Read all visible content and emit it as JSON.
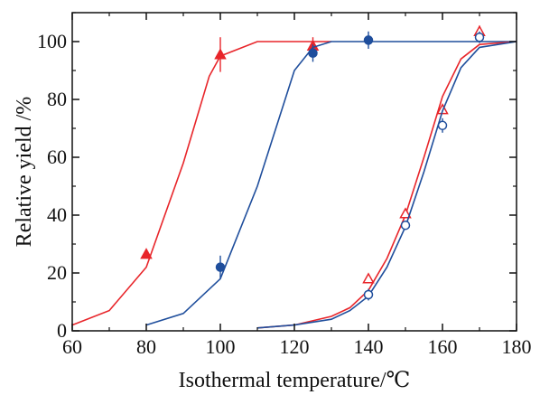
{
  "chart_data": {
    "type": "line",
    "xlabel": "Isothermal temperature/℃",
    "ylabel": "Relative yield /%",
    "xlim": [
      60,
      180
    ],
    "ylim": [
      0,
      110
    ],
    "xticks": [
      60,
      80,
      100,
      120,
      140,
      160,
      180
    ],
    "yticks": [
      0,
      20,
      40,
      60,
      80,
      100
    ],
    "grid": false,
    "series": [
      {
        "color": "#e8252a",
        "marker": "triangle-filled",
        "curve": {
          "x": [
            60,
            70,
            80,
            90,
            97,
            100,
            110,
            120,
            130
          ],
          "y": [
            2,
            7,
            22,
            58,
            88,
            95,
            100,
            100,
            100
          ]
        },
        "points": [
          {
            "x": 80,
            "y": 26.5,
            "err": 0
          },
          {
            "x": 100,
            "y": 95.5,
            "err": 6
          },
          {
            "x": 125,
            "y": 98.5,
            "err": 3
          }
        ]
      },
      {
        "color": "#1f4e9c",
        "marker": "circle-filled",
        "curve": {
          "x": [
            80,
            90,
            100,
            110,
            120,
            125,
            130,
            140,
            150,
            160,
            170,
            180
          ],
          "y": [
            2,
            6,
            18,
            50,
            90,
            98,
            100,
            100,
            100,
            100,
            100,
            100
          ]
        },
        "points": [
          {
            "x": 100,
            "y": 22,
            "err": 4
          },
          {
            "x": 125,
            "y": 96,
            "err": 3
          },
          {
            "x": 140,
            "y": 100.5,
            "err": 3
          }
        ]
      },
      {
        "color": "#e8252a",
        "marker": "triangle-open",
        "curve": {
          "x": [
            110,
            120,
            130,
            135,
            140,
            145,
            150,
            155,
            160,
            165,
            170,
            180
          ],
          "y": [
            1,
            2,
            5,
            8,
            14,
            25,
            40,
            60,
            81,
            94,
            99,
            100
          ]
        },
        "points": [
          {
            "x": 140,
            "y": 18,
            "err": 1.5
          },
          {
            "x": 150,
            "y": 40.5,
            "err": 1.5
          },
          {
            "x": 160,
            "y": 76.5,
            "err": 1.5
          },
          {
            "x": 170,
            "y": 103.5,
            "err": 2
          }
        ]
      },
      {
        "color": "#1f4e9c",
        "marker": "circle-open",
        "curve": {
          "x": [
            110,
            120,
            130,
            135,
            140,
            145,
            150,
            155,
            160,
            165,
            170,
            180
          ],
          "y": [
            1,
            2,
            4,
            7,
            12,
            22,
            36,
            55,
            76,
            91,
            98,
            100
          ]
        },
        "points": [
          {
            "x": 140,
            "y": 12.5,
            "err": 2
          },
          {
            "x": 150,
            "y": 36.5,
            "err": 1.5
          },
          {
            "x": 160,
            "y": 71,
            "err": 2.5
          },
          {
            "x": 170,
            "y": 101.5,
            "err": 2
          }
        ]
      }
    ]
  }
}
